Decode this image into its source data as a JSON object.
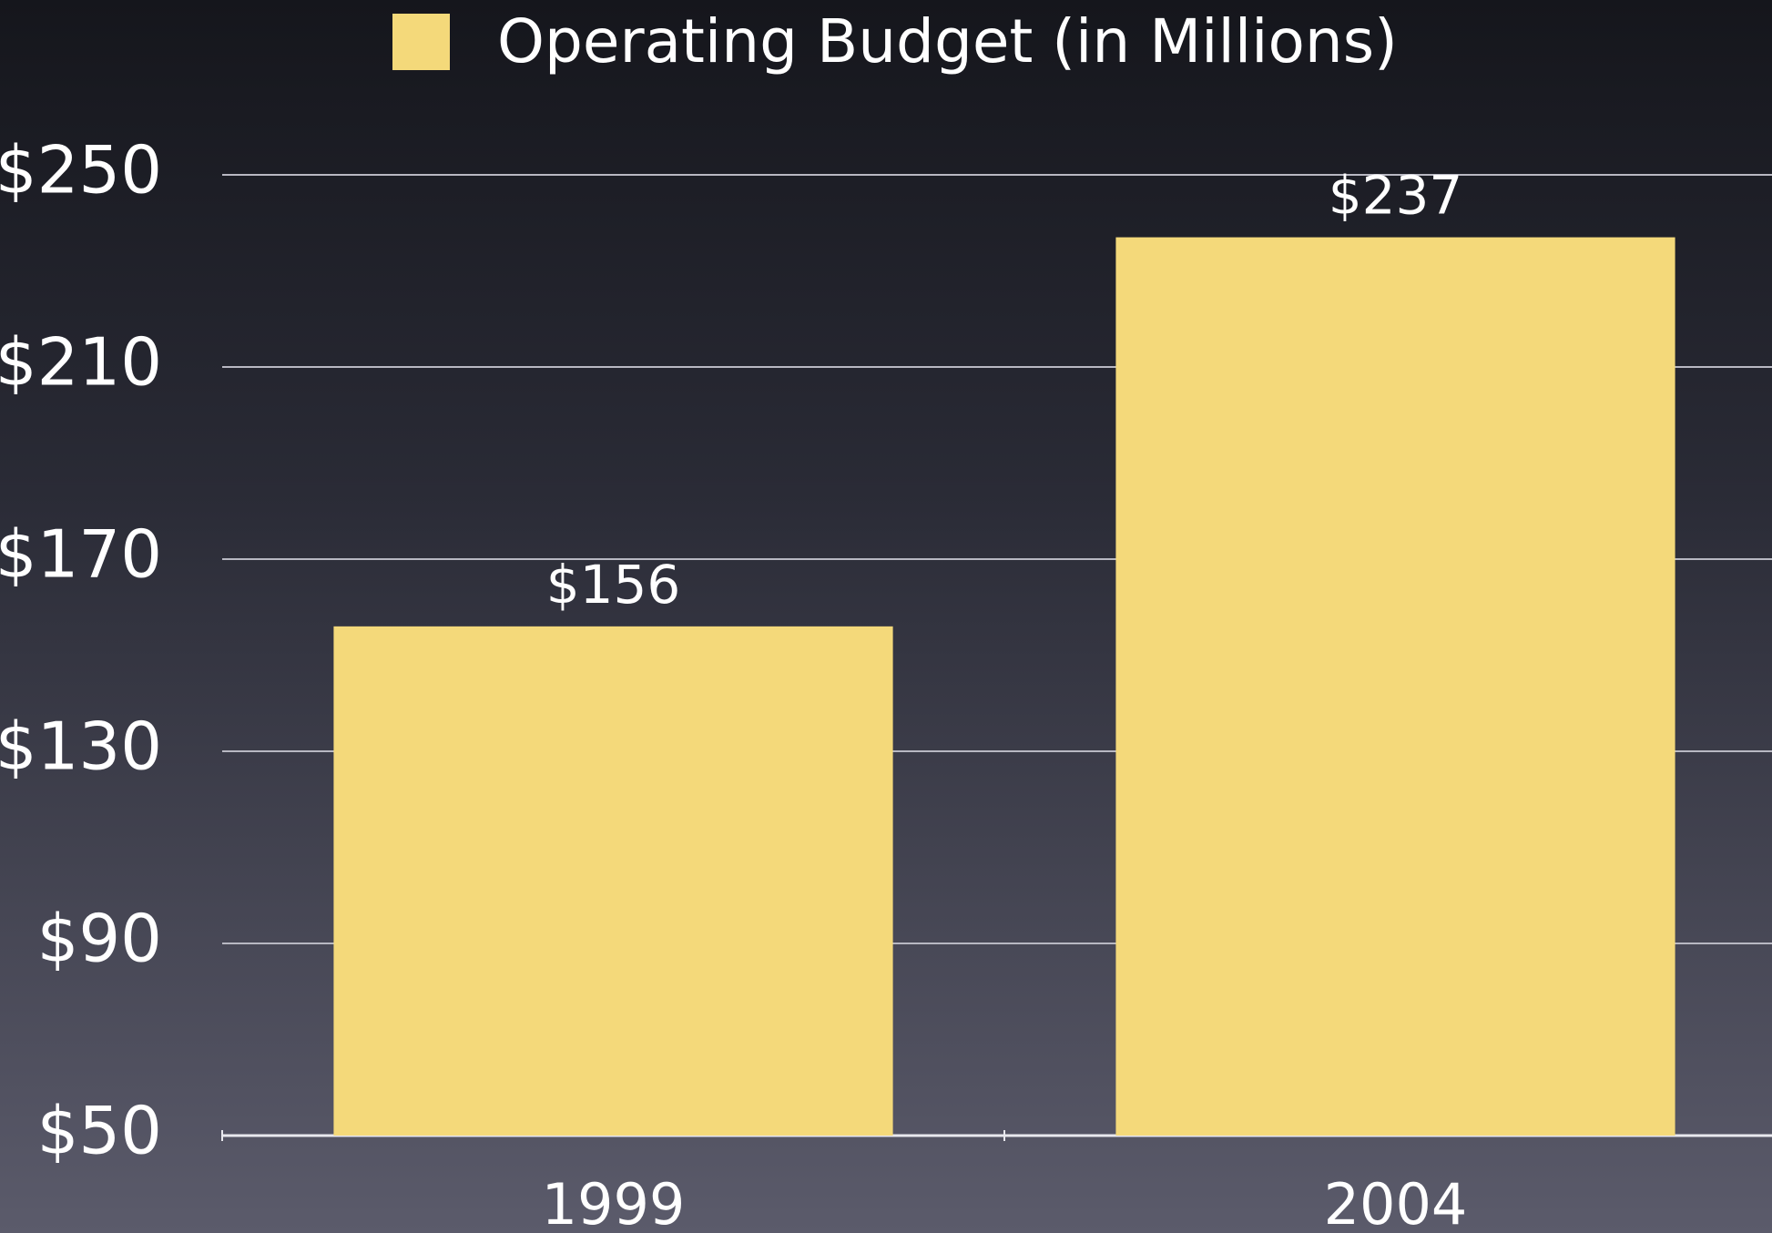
{
  "chart_data": {
    "type": "bar",
    "categories": [
      "1999",
      "2004"
    ],
    "series": [
      {
        "name": "Operating Budget (in Millions)",
        "color": "#f4d97a",
        "values": [
          156,
          237
        ],
        "value_labels": [
          "$156",
          "$237"
        ]
      }
    ],
    "ylim": [
      50,
      250
    ],
    "yticks": [
      {
        "value": 50,
        "label": "$50"
      },
      {
        "value": 90,
        "label": "$90"
      },
      {
        "value": 130,
        "label": "$130"
      },
      {
        "value": 170,
        "label": "$170"
      },
      {
        "value": 210,
        "label": "$210"
      },
      {
        "value": 250,
        "label": "$250"
      }
    ],
    "grid": true,
    "legend": "top"
  }
}
